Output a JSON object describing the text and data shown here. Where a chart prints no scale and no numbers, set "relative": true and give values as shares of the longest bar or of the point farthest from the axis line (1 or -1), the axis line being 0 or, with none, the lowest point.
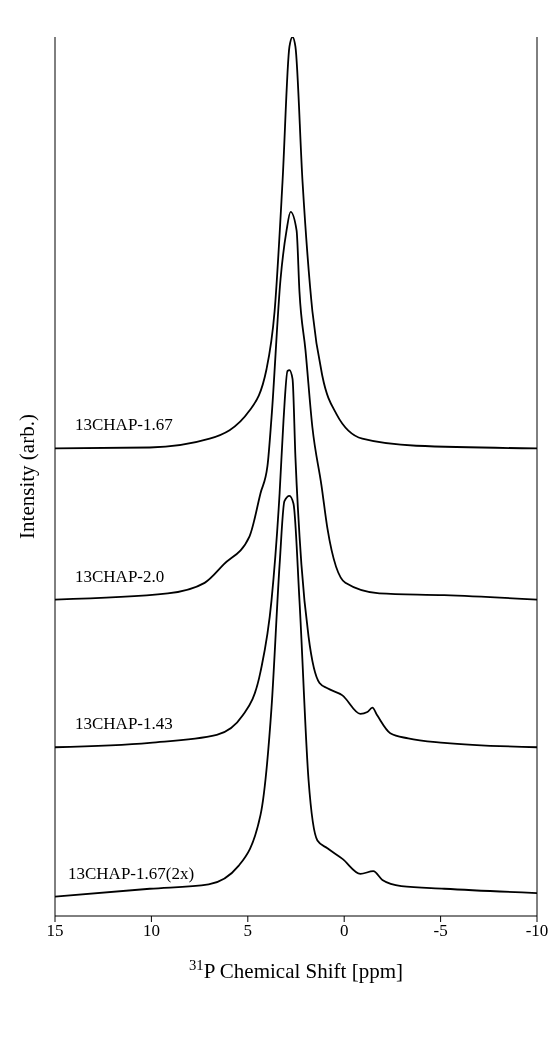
{
  "chart_data": {
    "type": "line",
    "relative": true,
    "xlabel": "$^{31}$P Chemical Shift [ppm]",
    "ylabel": "Intensity (arb.)",
    "xlim": [
      15,
      -10
    ],
    "xticks": [
      15,
      10,
      5,
      0,
      -5,
      -10
    ],
    "legend": false,
    "grid": false,
    "marker": "none",
    "line_style": "solid",
    "series": [
      {
        "name": "13CHAP-1.67",
        "color": "#000000",
        "x": [
          15,
          10.08,
          6.98,
          4.91,
          4.03,
          3.61,
          3.2,
          2.84,
          2.68,
          2.53,
          2.16,
          1.65,
          1.13,
          0.4,
          -0.94,
          -3.74,
          -10
        ],
        "values": [
          0.532,
          0.533,
          0.543,
          0.575,
          0.622,
          0.688,
          0.835,
          0.989,
          1.0,
          0.989,
          0.835,
          0.688,
          0.614,
          0.571,
          0.543,
          0.535,
          0.532
        ]
      },
      {
        "name": "13CHAP-2.0",
        "color": "#000000",
        "x": [
          15,
          9.15,
          7.24,
          6.25,
          4.91,
          4.34,
          3.98,
          3.77,
          3.3,
          2.99,
          2.78,
          2.47,
          2.32,
          2.01,
          1.65,
          1.18,
          0.87,
          -0.06,
          -1.82,
          -5.19,
          -10
        ],
        "values": [
          0.36,
          0.367,
          0.379,
          0.4,
          0.432,
          0.481,
          0.512,
          0.567,
          0.725,
          0.78,
          0.801,
          0.78,
          0.71,
          0.644,
          0.556,
          0.49,
          0.441,
          0.379,
          0.367,
          0.365,
          0.36
        ]
      },
      {
        "name": "13CHAP-1.43",
        "color": "#000000",
        "x": [
          15,
          10.08,
          6.61,
          5.27,
          4.34,
          3.77,
          3.35,
          3.15,
          2.94,
          2.84,
          2.68,
          2.53,
          2.22,
          1.85,
          1.28,
          0.87,
          0.09,
          -0.84,
          -1.2,
          -1.46,
          -1.72,
          -2.39,
          -3.32,
          -5.19,
          -10
        ],
        "values": [
          0.192,
          0.197,
          0.206,
          0.228,
          0.278,
          0.359,
          0.481,
          0.563,
          0.62,
          0.621,
          0.611,
          0.522,
          0.4,
          0.318,
          0.265,
          0.259,
          0.251,
          0.23,
          0.232,
          0.237,
          0.228,
          0.208,
          0.202,
          0.197,
          0.192
        ]
      },
      {
        "name": "13CHAP-1.67(2x)",
        "color": "#000000",
        "x": [
          15,
          10.08,
          7.03,
          5.48,
          4.34,
          3.77,
          3.35,
          3.1,
          2.84,
          2.63,
          2.32,
          1.85,
          1.39,
          0.87,
          0.09,
          -0.84,
          -1.51,
          -1.98,
          -2.96,
          -5.19,
          -10
        ],
        "values": [
          0.022,
          0.031,
          0.036,
          0.057,
          0.115,
          0.237,
          0.4,
          0.472,
          0.478,
          0.469,
          0.359,
          0.155,
          0.086,
          0.077,
          0.065,
          0.048,
          0.051,
          0.041,
          0.034,
          0.031,
          0.026
        ]
      }
    ]
  }
}
